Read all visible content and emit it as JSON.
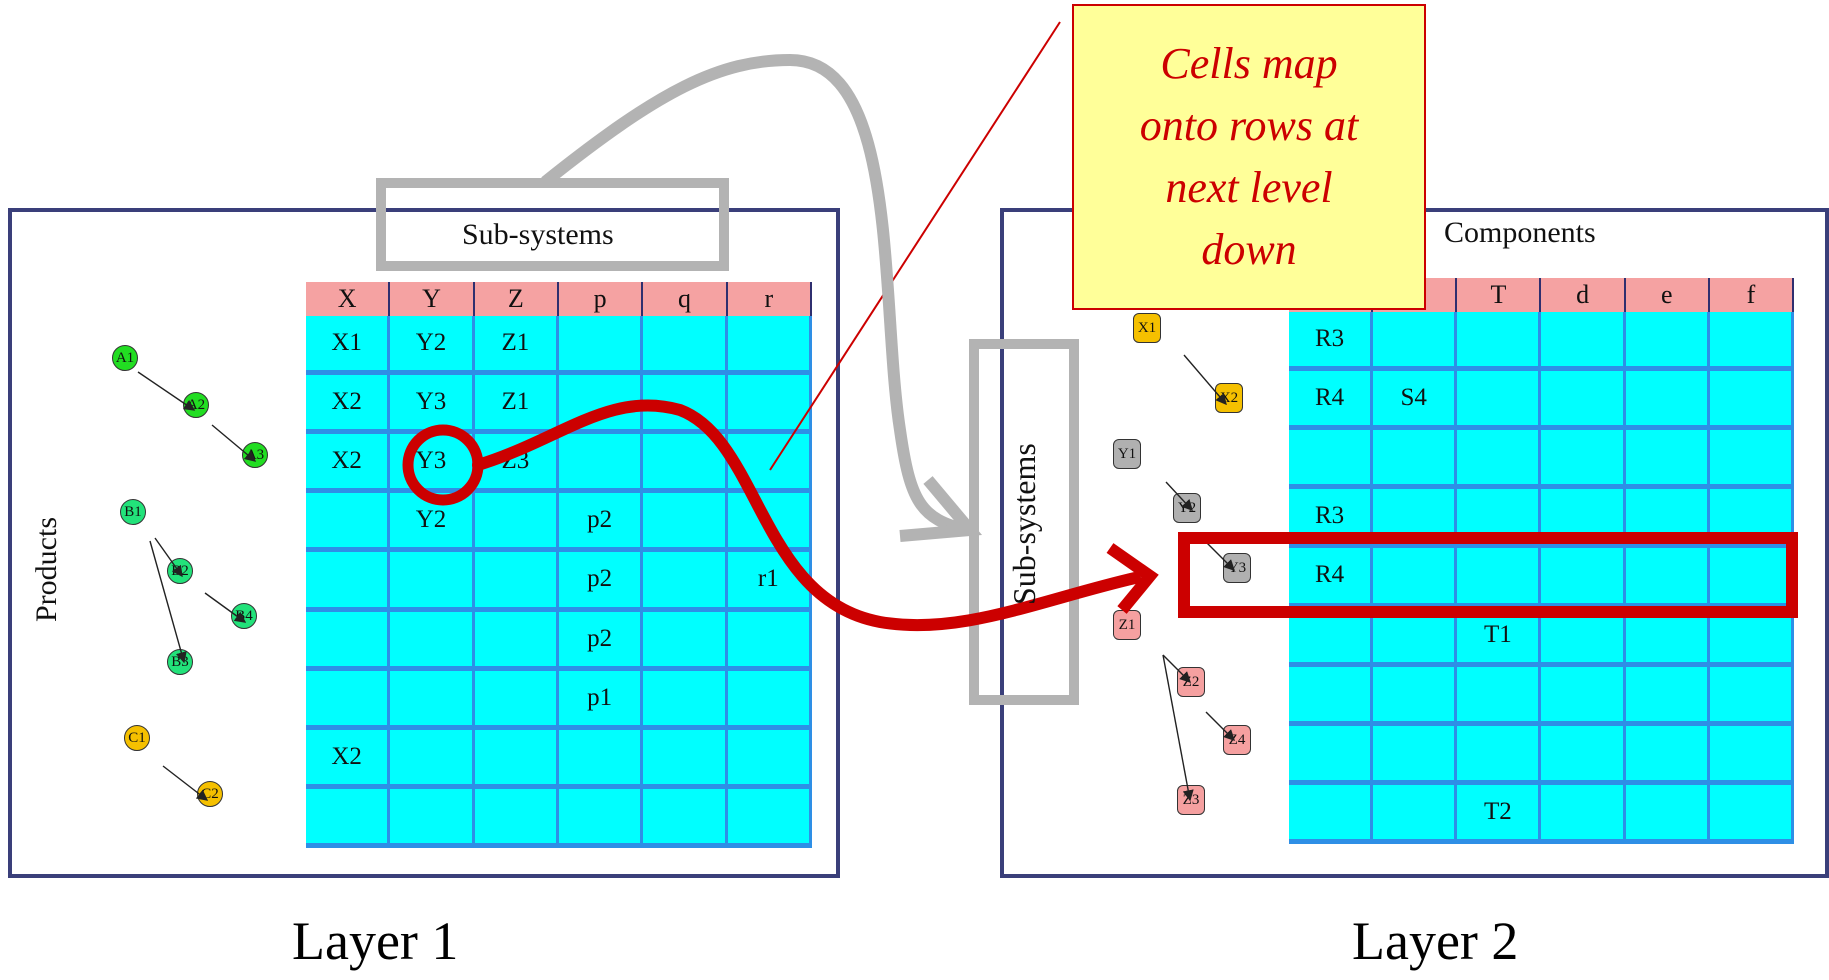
{
  "layer1": {
    "caption": "Layer 1",
    "column_title": "Sub-systems",
    "row_title": "Products",
    "headers": [
      "X",
      "Y",
      "Z",
      "p",
      "q",
      "r"
    ],
    "rows": [
      [
        "X1",
        "Y2",
        "Z1",
        "",
        "",
        ""
      ],
      [
        "X2",
        "Y3",
        "Z1",
        "",
        "",
        ""
      ],
      [
        "X2",
        "Y3",
        "Z3",
        "",
        "",
        ""
      ],
      [
        "",
        "Y2",
        "",
        "p2",
        "",
        ""
      ],
      [
        "",
        "",
        "",
        "p2",
        "",
        "r1"
      ],
      [
        "",
        "",
        "",
        "p2",
        "",
        ""
      ],
      [
        "",
        "",
        "",
        "p1",
        "",
        ""
      ],
      [
        "X2",
        "",
        "",
        "",
        "",
        ""
      ],
      [
        "",
        "",
        "",
        "",
        "",
        ""
      ]
    ],
    "nodes": [
      {
        "label": "A1",
        "color": "#22dd22"
      },
      {
        "label": "A2",
        "color": "#22dd22"
      },
      {
        "label": "A3",
        "color": "#22dd22"
      },
      {
        "label": "B1",
        "color": "#22e27a"
      },
      {
        "label": "B2",
        "color": "#22e27a"
      },
      {
        "label": "B4",
        "color": "#22e27a"
      },
      {
        "label": "B3",
        "color": "#22e27a"
      },
      {
        "label": "C1",
        "color": "#f5c000"
      },
      {
        "label": "C2",
        "color": "#f5c000"
      }
    ]
  },
  "layer2": {
    "caption": "Layer 2",
    "column_title": "Components",
    "row_title": "Sub-systems",
    "headers": [
      "",
      "",
      "T",
      "d",
      "e",
      "f"
    ],
    "rows": [
      [
        "R3",
        "",
        "",
        "",
        "",
        ""
      ],
      [
        "R4",
        "S4",
        "",
        "",
        "",
        ""
      ],
      [
        "",
        "",
        "",
        "",
        "",
        ""
      ],
      [
        "R3",
        "",
        "",
        "",
        "",
        ""
      ],
      [
        "R4",
        "",
        "",
        "",
        "",
        ""
      ],
      [
        "",
        "",
        "T1",
        "",
        "",
        ""
      ],
      [
        "",
        "",
        "",
        "",
        "",
        ""
      ],
      [
        "",
        "",
        "",
        "",
        "",
        ""
      ],
      [
        "",
        "",
        "T2",
        "",
        "",
        ""
      ]
    ],
    "nodes": [
      {
        "label": "X1",
        "color": "#f5c000"
      },
      {
        "label": "X2",
        "color": "#f5c000"
      },
      {
        "label": "Y1",
        "color": "#b0b0b0"
      },
      {
        "label": "Y2",
        "color": "#b0b0b0"
      },
      {
        "label": "Y3",
        "color": "#b0b0b0"
      },
      {
        "label": "Z1",
        "color": "#f5a0a0"
      },
      {
        "label": "Z2",
        "color": "#f5a0a0"
      },
      {
        "label": "Z4",
        "color": "#f5a0a0"
      },
      {
        "label": "Z3",
        "color": "#f5a0a0"
      }
    ]
  },
  "callout": {
    "lines": [
      "Cells map",
      "onto rows at",
      "next level",
      "down"
    ],
    "text_color": "#cc0000",
    "fill": "#ffff99"
  },
  "colors": {
    "highlight": "#cc0000",
    "gray_arrow": "#b3b3b3",
    "panel_border": "#3a3f7a",
    "cell": "#00ffff",
    "header": "#f5a2a2"
  }
}
